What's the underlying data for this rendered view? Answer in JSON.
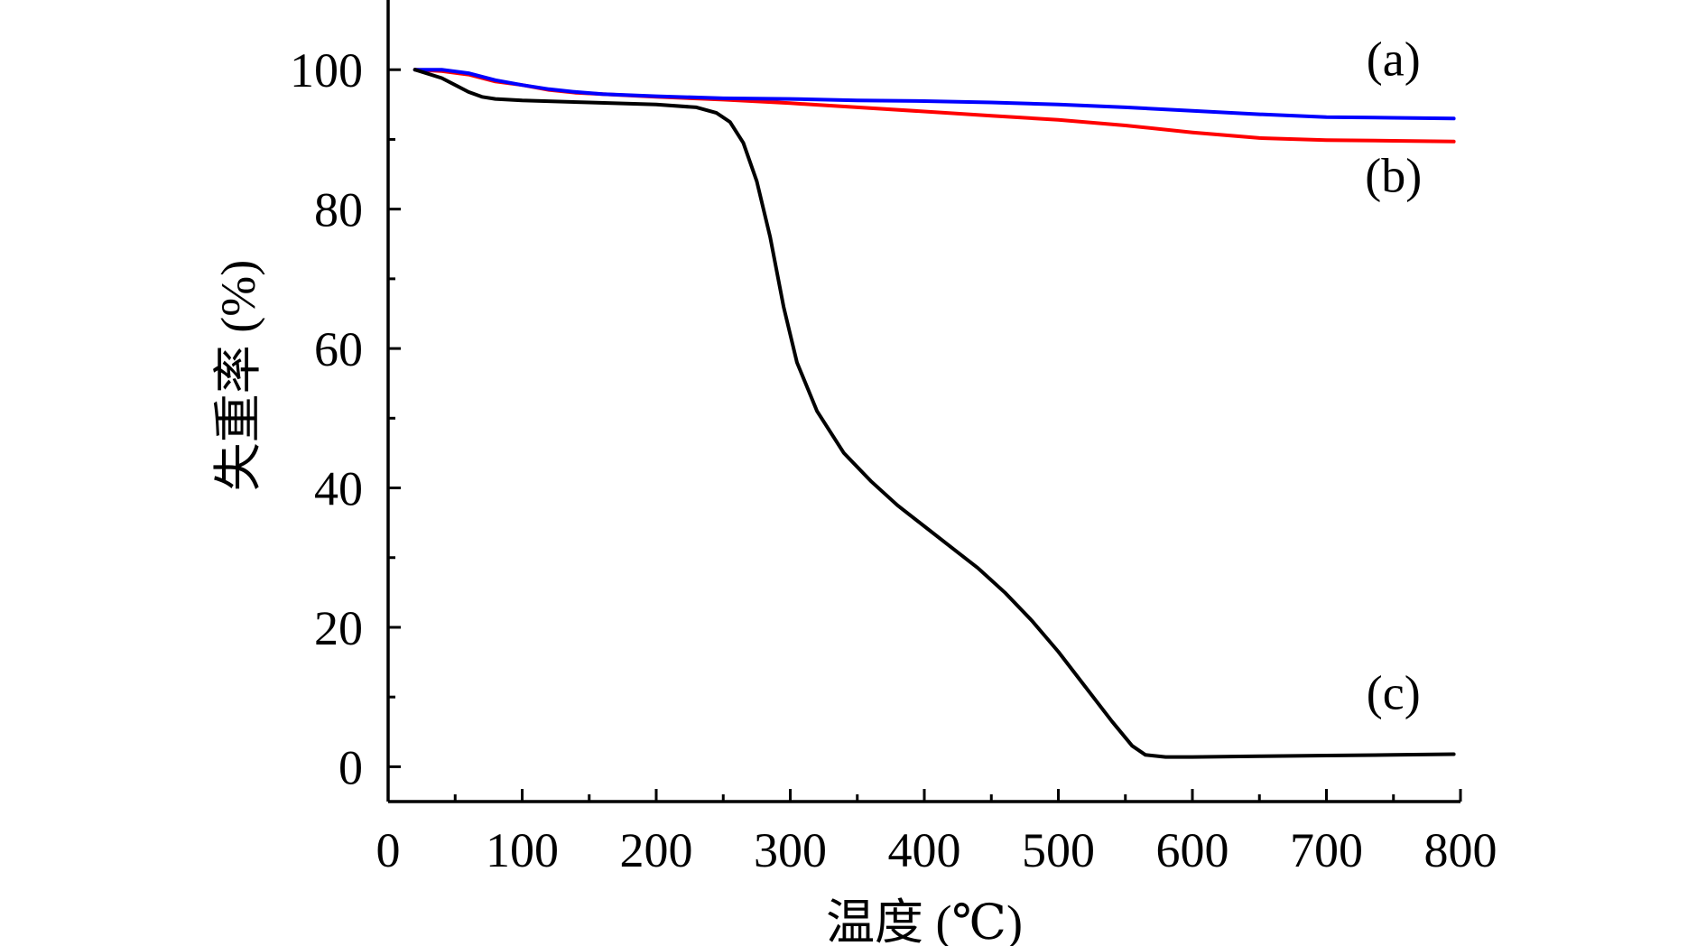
{
  "chart_data": {
    "type": "line",
    "title": "",
    "xlabel": "温度 (℃)",
    "ylabel": "失重率 (%)",
    "xlim": [
      0,
      800
    ],
    "ylim": [
      -5,
      110
    ],
    "x_ticks": [
      0,
      100,
      200,
      300,
      400,
      500,
      600,
      700,
      800
    ],
    "y_ticks": [
      0,
      20,
      40,
      60,
      80,
      100
    ],
    "x_minor_ticks": [
      50,
      150,
      250,
      350,
      450,
      550,
      650,
      750
    ],
    "y_minor_ticks": [
      10,
      30,
      50,
      70,
      90
    ],
    "grid": false,
    "legend": "none",
    "series": [
      {
        "label": "(a)",
        "color": "#0000ff",
        "points": [
          [
            20,
            100
          ],
          [
            40,
            100
          ],
          [
            60,
            99.5
          ],
          [
            80,
            98.5
          ],
          [
            100,
            97.8
          ],
          [
            120,
            97.2
          ],
          [
            140,
            96.8
          ],
          [
            160,
            96.5
          ],
          [
            200,
            96.2
          ],
          [
            250,
            95.9
          ],
          [
            300,
            95.8
          ],
          [
            350,
            95.6
          ],
          [
            400,
            95.5
          ],
          [
            450,
            95.3
          ],
          [
            500,
            95.0
          ],
          [
            550,
            94.6
          ],
          [
            600,
            94.1
          ],
          [
            650,
            93.6
          ],
          [
            700,
            93.2
          ],
          [
            750,
            93.1
          ],
          [
            795,
            93.0
          ]
        ]
      },
      {
        "label": "(b)",
        "color": "#ff0000",
        "points": [
          [
            20,
            100
          ],
          [
            40,
            99.8
          ],
          [
            60,
            99.3
          ],
          [
            80,
            98.3
          ],
          [
            100,
            97.8
          ],
          [
            120,
            97.1
          ],
          [
            140,
            96.7
          ],
          [
            160,
            96.5
          ],
          [
            200,
            96.1
          ],
          [
            250,
            95.7
          ],
          [
            300,
            95.2
          ],
          [
            350,
            94.6
          ],
          [
            400,
            94.0
          ],
          [
            450,
            93.4
          ],
          [
            500,
            92.8
          ],
          [
            550,
            92.0
          ],
          [
            600,
            91.0
          ],
          [
            650,
            90.2
          ],
          [
            700,
            89.9
          ],
          [
            750,
            89.8
          ],
          [
            795,
            89.7
          ]
        ]
      },
      {
        "label": "(c)",
        "color": "#000000",
        "points": [
          [
            20,
            100
          ],
          [
            40,
            98.8
          ],
          [
            60,
            96.8
          ],
          [
            70,
            96.1
          ],
          [
            80,
            95.8
          ],
          [
            100,
            95.6
          ],
          [
            150,
            95.3
          ],
          [
            200,
            95.0
          ],
          [
            230,
            94.6
          ],
          [
            245,
            93.8
          ],
          [
            255,
            92.5
          ],
          [
            265,
            89.5
          ],
          [
            275,
            84
          ],
          [
            285,
            76
          ],
          [
            295,
            66
          ],
          [
            305,
            58
          ],
          [
            320,
            51
          ],
          [
            340,
            45
          ],
          [
            360,
            41
          ],
          [
            380,
            37.5
          ],
          [
            400,
            34.5
          ],
          [
            420,
            31.5
          ],
          [
            440,
            28.5
          ],
          [
            460,
            25.0
          ],
          [
            480,
            21.0
          ],
          [
            500,
            16.5
          ],
          [
            520,
            11.5
          ],
          [
            540,
            6.5
          ],
          [
            555,
            3.0
          ],
          [
            565,
            1.7
          ],
          [
            580,
            1.4
          ],
          [
            600,
            1.4
          ],
          [
            650,
            1.5
          ],
          [
            700,
            1.6
          ],
          [
            750,
            1.7
          ],
          [
            795,
            1.8
          ]
        ]
      }
    ]
  }
}
